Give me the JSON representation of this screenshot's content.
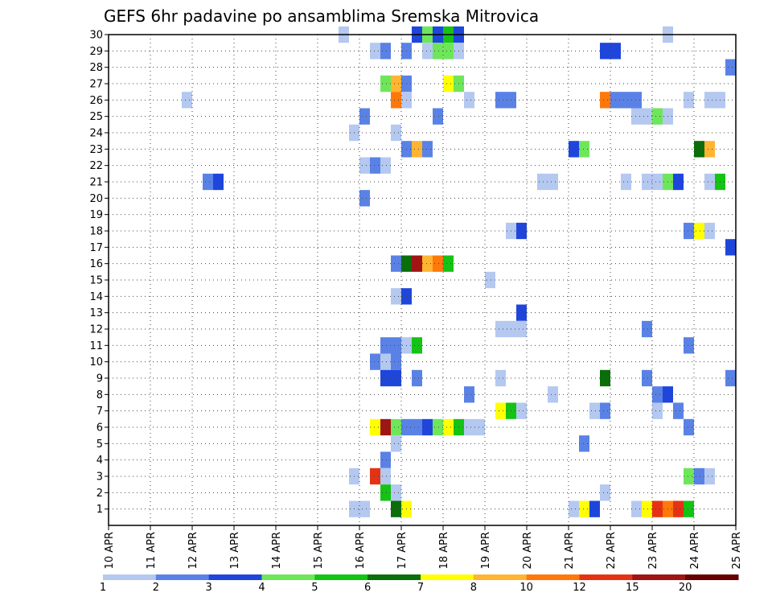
{
  "chart_data": {
    "type": "heatmap",
    "title": "GEFS 6hr padavine po ansamblima Sremska Mitrovica",
    "xlabel": "",
    "ylabel": "",
    "x_ticks": [
      "10 APR",
      "11 APR",
      "12 APR",
      "13 APR",
      "14 APR",
      "15 APR",
      "16 APR",
      "17 APR",
      "18 APR",
      "19 APR",
      "20 APR",
      "21 APR",
      "22 APR",
      "23 APR",
      "24 APR",
      "25 APR"
    ],
    "y_ticks": [
      "1",
      "2",
      "3",
      "4",
      "5",
      "6",
      "7",
      "8",
      "9",
      "10",
      "11",
      "12",
      "13",
      "14",
      "15",
      "16",
      "17",
      "18",
      "19",
      "20",
      "21",
      "22",
      "23",
      "24",
      "25",
      "26",
      "27",
      "28",
      "29",
      "30"
    ],
    "xlim": [
      0,
      60
    ],
    "ylim": [
      0,
      30
    ],
    "grid": true,
    "colorbar": {
      "labels": [
        "1",
        "2",
        "3",
        "4",
        "5",
        "6",
        "7",
        "8",
        "10",
        "12",
        "15",
        "20"
      ],
      "colors": [
        "#b4c8f0",
        "#5a82e6",
        "#1e46dc",
        "#6ee65a",
        "#14c314",
        "#0a6e0a",
        "#ffff00",
        "#ffb432",
        "#ff780a",
        "#e63214",
        "#a01414",
        "#640000"
      ]
    },
    "cells": [
      [
        22.5,
        30,
        0
      ],
      [
        29.5,
        30,
        2
      ],
      [
        30.5,
        30,
        3
      ],
      [
        31.5,
        30,
        2
      ],
      [
        32.5,
        30,
        4
      ],
      [
        33.5,
        30,
        2
      ],
      [
        53.5,
        30,
        0
      ],
      [
        25.5,
        29,
        0
      ],
      [
        26.5,
        29,
        1
      ],
      [
        28.5,
        29,
        1
      ],
      [
        30.5,
        29,
        0
      ],
      [
        31.5,
        29,
        3
      ],
      [
        32.5,
        29,
        3
      ],
      [
        33.5,
        29,
        0
      ],
      [
        47.5,
        29,
        2
      ],
      [
        48.5,
        29,
        2
      ],
      [
        59.5,
        28,
        1
      ],
      [
        26.5,
        27,
        3
      ],
      [
        27.5,
        27,
        7
      ],
      [
        28.5,
        27,
        1
      ],
      [
        32.5,
        27,
        6
      ],
      [
        33.5,
        27,
        3
      ],
      [
        7.5,
        26,
        0
      ],
      [
        27.5,
        26,
        8
      ],
      [
        28.5,
        26,
        0
      ],
      [
        34.5,
        26,
        0
      ],
      [
        37.5,
        26,
        1
      ],
      [
        38.5,
        26,
        1
      ],
      [
        47.5,
        26,
        8
      ],
      [
        48.5,
        26,
        1
      ],
      [
        49.5,
        26,
        1
      ],
      [
        50.5,
        26,
        1
      ],
      [
        55.5,
        26,
        0
      ],
      [
        57.5,
        26,
        0
      ],
      [
        58.5,
        26,
        0
      ],
      [
        24.5,
        25,
        1
      ],
      [
        31.5,
        25,
        1
      ],
      [
        50.5,
        25,
        0
      ],
      [
        51.5,
        25,
        0
      ],
      [
        52.5,
        25,
        3
      ],
      [
        53.5,
        25,
        0
      ],
      [
        23.5,
        24,
        0
      ],
      [
        27.5,
        24,
        0
      ],
      [
        28.5,
        23,
        1
      ],
      [
        29.5,
        23,
        7
      ],
      [
        30.5,
        23,
        1
      ],
      [
        44.5,
        23,
        2
      ],
      [
        45.5,
        23,
        3
      ],
      [
        56.5,
        23,
        5
      ],
      [
        57.5,
        23,
        7
      ],
      [
        24.5,
        22,
        0
      ],
      [
        25.5,
        22,
        1
      ],
      [
        26.5,
        22,
        0
      ],
      [
        9.5,
        21,
        1
      ],
      [
        10.5,
        21,
        2
      ],
      [
        41.5,
        21,
        0
      ],
      [
        42.5,
        21,
        0
      ],
      [
        49.5,
        21,
        0
      ],
      [
        51.5,
        21,
        0
      ],
      [
        52.5,
        21,
        0
      ],
      [
        53.5,
        21,
        3
      ],
      [
        54.5,
        21,
        2
      ],
      [
        57.5,
        21,
        0
      ],
      [
        58.5,
        21,
        4
      ],
      [
        24.5,
        20,
        1
      ],
      [
        38.5,
        18,
        0
      ],
      [
        39.5,
        18,
        2
      ],
      [
        55.5,
        18,
        1
      ],
      [
        56.5,
        18,
        6
      ],
      [
        57.5,
        18,
        0
      ],
      [
        59.5,
        17,
        2
      ],
      [
        27.5,
        16,
        1
      ],
      [
        28.5,
        16,
        5
      ],
      [
        29.5,
        16,
        10
      ],
      [
        30.5,
        16,
        7
      ],
      [
        31.5,
        16,
        8
      ],
      [
        32.5,
        16,
        4
      ],
      [
        36.5,
        15,
        0
      ],
      [
        27.5,
        14,
        0
      ],
      [
        28.5,
        14,
        2
      ],
      [
        39.5,
        13,
        2
      ],
      [
        37.5,
        12,
        0
      ],
      [
        38.5,
        12,
        0
      ],
      [
        39.5,
        12,
        0
      ],
      [
        51.5,
        12,
        1
      ],
      [
        26.5,
        11,
        1
      ],
      [
        27.5,
        11,
        1
      ],
      [
        28.5,
        11,
        0
      ],
      [
        29.5,
        11,
        4
      ],
      [
        55.5,
        11,
        1
      ],
      [
        25.5,
        10,
        1
      ],
      [
        26.5,
        10,
        0
      ],
      [
        27.5,
        10,
        1
      ],
      [
        26.5,
        9,
        2
      ],
      [
        27.5,
        9,
        2
      ],
      [
        29.5,
        9,
        1
      ],
      [
        37.5,
        9,
        0
      ],
      [
        47.5,
        9,
        5
      ],
      [
        51.5,
        9,
        1
      ],
      [
        59.5,
        9,
        1
      ],
      [
        34.5,
        8,
        1
      ],
      [
        42.5,
        8,
        0
      ],
      [
        52.5,
        8,
        1
      ],
      [
        53.5,
        8,
        2
      ],
      [
        37.5,
        7,
        6
      ],
      [
        38.5,
        7,
        4
      ],
      [
        39.5,
        7,
        0
      ],
      [
        46.5,
        7,
        0
      ],
      [
        47.5,
        7,
        1
      ],
      [
        52.5,
        7,
        0
      ],
      [
        54.5,
        7,
        1
      ],
      [
        25.5,
        6,
        6
      ],
      [
        26.5,
        6,
        10
      ],
      [
        27.5,
        6,
        3
      ],
      [
        28.5,
        6,
        1
      ],
      [
        29.5,
        6,
        1
      ],
      [
        30.5,
        6,
        2
      ],
      [
        31.5,
        6,
        3
      ],
      [
        32.5,
        6,
        6
      ],
      [
        33.5,
        6,
        4
      ],
      [
        34.5,
        6,
        0
      ],
      [
        35.5,
        6,
        0
      ],
      [
        55.5,
        6,
        1
      ],
      [
        27.5,
        5,
        0
      ],
      [
        45.5,
        5,
        1
      ],
      [
        26.5,
        4,
        1
      ],
      [
        23.5,
        3,
        0
      ],
      [
        25.5,
        3,
        9
      ],
      [
        26.5,
        3,
        0
      ],
      [
        55.5,
        3,
        3
      ],
      [
        56.5,
        3,
        1
      ],
      [
        57.5,
        3,
        0
      ],
      [
        26.5,
        2,
        4
      ],
      [
        27.5,
        2,
        0
      ],
      [
        47.5,
        2,
        0
      ],
      [
        23.5,
        1,
        0
      ],
      [
        24.5,
        1,
        0
      ],
      [
        27.5,
        1,
        5
      ],
      [
        28.5,
        1,
        6
      ],
      [
        44.5,
        1,
        0
      ],
      [
        45.5,
        1,
        6
      ],
      [
        46.5,
        1,
        2
      ],
      [
        50.5,
        1,
        0
      ],
      [
        51.5,
        1,
        6
      ],
      [
        52.5,
        1,
        9
      ],
      [
        53.5,
        1,
        8
      ],
      [
        54.5,
        1,
        9
      ],
      [
        55.5,
        1,
        4
      ]
    ]
  }
}
